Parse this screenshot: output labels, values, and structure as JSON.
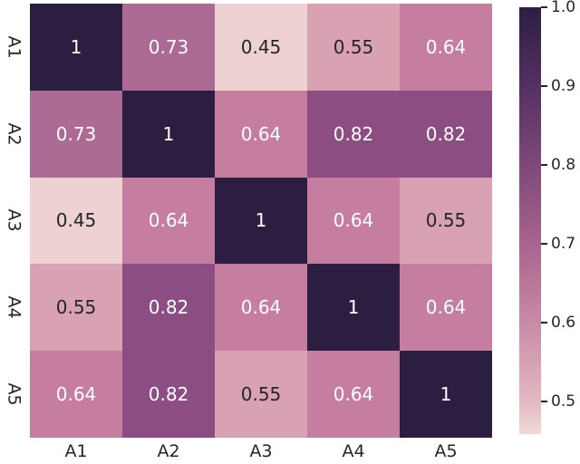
{
  "chart_data": {
    "type": "heatmap",
    "title": "",
    "categories": [
      "A1",
      "A2",
      "A3",
      "A4",
      "A5"
    ],
    "matrix": [
      [
        1,
        0.73,
        0.45,
        0.55,
        0.64
      ],
      [
        0.73,
        1,
        0.64,
        0.82,
        0.82
      ],
      [
        0.45,
        0.64,
        1,
        0.64,
        0.55
      ],
      [
        0.55,
        0.82,
        0.64,
        1,
        0.64
      ],
      [
        0.64,
        0.82,
        0.55,
        0.64,
        1
      ]
    ],
    "annotations": [
      [
        "1",
        "0.73",
        "0.45",
        "0.55",
        "0.64"
      ],
      [
        "0.73",
        "1",
        "0.64",
        "0.82",
        "0.82"
      ],
      [
        "0.45",
        "0.64",
        "1",
        "0.64",
        "0.55"
      ],
      [
        "0.55",
        "0.82",
        "0.64",
        "1",
        "0.64"
      ],
      [
        "0.64",
        "0.82",
        "0.55",
        "0.64",
        "1"
      ]
    ],
    "value_colors": {
      "1": "#2c1e41",
      "0.82": "#8c4d82",
      "0.73": "#ad6a94",
      "0.64": "#c57e9f",
      "0.55": "#d8a2b2",
      "0.45": "#edd1d3"
    },
    "annotation_text_colors": {
      "light": "#ffffff",
      "dark": "#262626"
    },
    "white_text_threshold": 0.6,
    "legend_position": "right-colorbar",
    "grid": false,
    "colorbar": {
      "tick_values": [
        1.0,
        0.9,
        0.8,
        0.7,
        0.6,
        0.5
      ],
      "tick_labels": [
        "1.0",
        "0.9",
        "0.8",
        "0.7",
        "0.6",
        "0.5"
      ],
      "vmax": 1.0,
      "vmin_display": 0.46,
      "gradient_stops": [
        {
          "v": 1.0,
          "color": "#2c1e41"
        },
        {
          "v": 0.9,
          "color": "#553063"
        },
        {
          "v": 0.8,
          "color": "#7f4879"
        },
        {
          "v": 0.7,
          "color": "#a8648e"
        },
        {
          "v": 0.6,
          "color": "#c98aa6"
        },
        {
          "v": 0.5,
          "color": "#e3b8c2"
        },
        {
          "v": 0.46,
          "color": "#f0d8d5"
        }
      ]
    }
  }
}
